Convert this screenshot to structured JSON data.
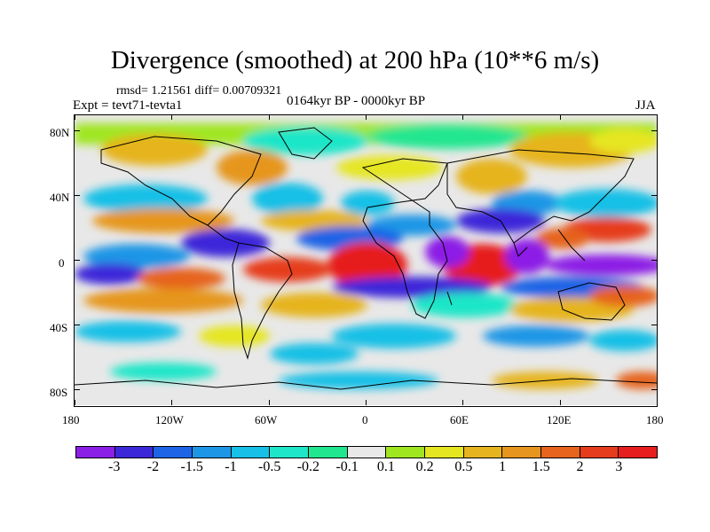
{
  "title": "Divergence (smoothed) at 200 hPa (10**6 m/s)",
  "stats_line": "rmsd= 1.21561 diff= 0.00709321",
  "experiment": "Expt = tevt71-tevta1",
  "period": "0164kyr BP - 0000kyr BP",
  "season": "JJA",
  "map": {
    "projection": "cylindrical equidistant",
    "lon_range": [
      -180,
      180
    ],
    "lat_range": [
      -90,
      90
    ],
    "y_ticks": [
      {
        "lat": 80,
        "label": "80N"
      },
      {
        "lat": 40,
        "label": "40N"
      },
      {
        "lat": 0,
        "label": "0"
      },
      {
        "lat": -40,
        "label": "40S"
      },
      {
        "lat": -80,
        "label": "80S"
      }
    ],
    "x_ticks": [
      {
        "lon": -180,
        "label": "180"
      },
      {
        "lon": -120,
        "label": "120W"
      },
      {
        "lon": -60,
        "label": "60W"
      },
      {
        "lon": 0,
        "label": "0"
      },
      {
        "lon": 60,
        "label": "60E"
      },
      {
        "lon": 120,
        "label": "120E"
      },
      {
        "lon": 180,
        "label": "180"
      }
    ]
  },
  "colorbar": {
    "colors": [
      "#8c1fe6",
      "#3c28d9",
      "#1e64e6",
      "#1e96e6",
      "#16c0e6",
      "#1ee6c8",
      "#20e690",
      "#e8e8e8",
      "#a0e620",
      "#e6e620",
      "#e6b41e",
      "#e6961e",
      "#e6641e",
      "#e63c1e",
      "#e61e1e"
    ],
    "labels": [
      "-3",
      "-2",
      "-1.5",
      "-1",
      "-0.5",
      "-0.2",
      "-0.1",
      "0.1",
      "0.2",
      "0.5",
      "1",
      "1.5",
      "2",
      "3"
    ]
  }
}
